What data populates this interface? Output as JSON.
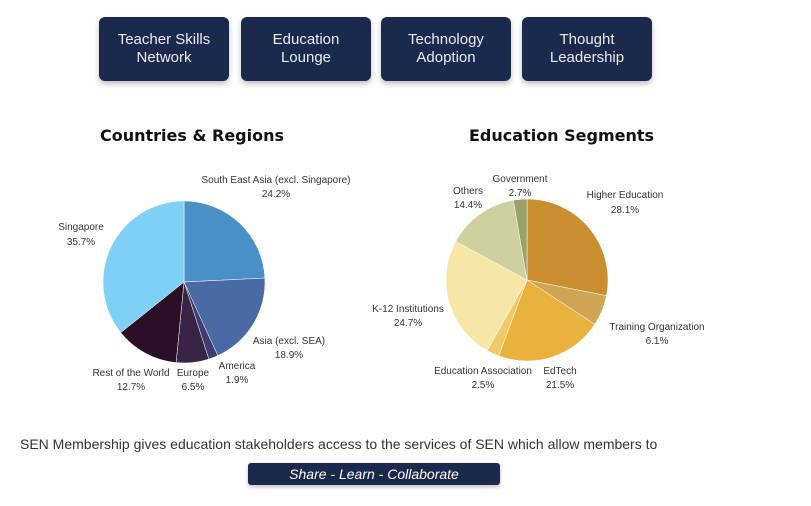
{
  "nav": {
    "items": [
      {
        "label": "Teacher Skills\nNetwork"
      },
      {
        "label": "Education\nLounge"
      },
      {
        "label": "Technology\nAdoption"
      },
      {
        "label": "Thought\nLeadership"
      }
    ]
  },
  "colors": {
    "nav_bg": "#1b2a4c",
    "cta_bg": "#1b2a4c"
  },
  "chart_data": [
    {
      "type": "pie",
      "title": "Countries & Regions",
      "slices": [
        {
          "label": "South East Asia (excl. Singapore)",
          "value": 24.2,
          "value_label": "24.2%",
          "color": "#4a90c8"
        },
        {
          "label": "Asia (excl. SEA)",
          "value": 18.9,
          "value_label": "18.9%",
          "color": "#4a6aa5"
        },
        {
          "label": "America",
          "value": 1.9,
          "value_label": "1.9%",
          "color": "#3c3e72"
        },
        {
          "label": "Europe",
          "value": 6.5,
          "value_label": "6.5%",
          "color": "#3a2446"
        },
        {
          "label": "Rest of the World",
          "value": 12.7,
          "value_label": "12.7%",
          "color": "#2a0f26"
        },
        {
          "label": "Singapore",
          "value": 35.7,
          "value_label": "35.7%",
          "color": "#7ed0f7"
        }
      ]
    },
    {
      "type": "pie",
      "title": "Education Segments",
      "slices": [
        {
          "label": "Higher Education",
          "value": 28.1,
          "value_label": "28.1%",
          "color": "#c98f2e"
        },
        {
          "label": "Training Organization",
          "value": 6.1,
          "value_label": "6.1%",
          "color": "#cfa454"
        },
        {
          "label": "EdTech",
          "value": 21.5,
          "value_label": "21.5%",
          "color": "#e8b23c"
        },
        {
          "label": "Education Association",
          "value": 2.5,
          "value_label": "2.5%",
          "color": "#efc96a"
        },
        {
          "label": "K-12 Institutions",
          "value": 24.7,
          "value_label": "24.7%",
          "color": "#f6e7a7"
        },
        {
          "label": "Others",
          "value": 14.4,
          "value_label": "14.4%",
          "color": "#cfd0a0"
        },
        {
          "label": "Government",
          "value": 2.7,
          "value_label": "2.7%",
          "color": "#9aa266"
        }
      ]
    }
  ],
  "footer": {
    "text": "SEN Membership gives education stakeholders access to the services of SEN which allow members to",
    "cta_label": "Share  - Learn - Collaborate"
  }
}
